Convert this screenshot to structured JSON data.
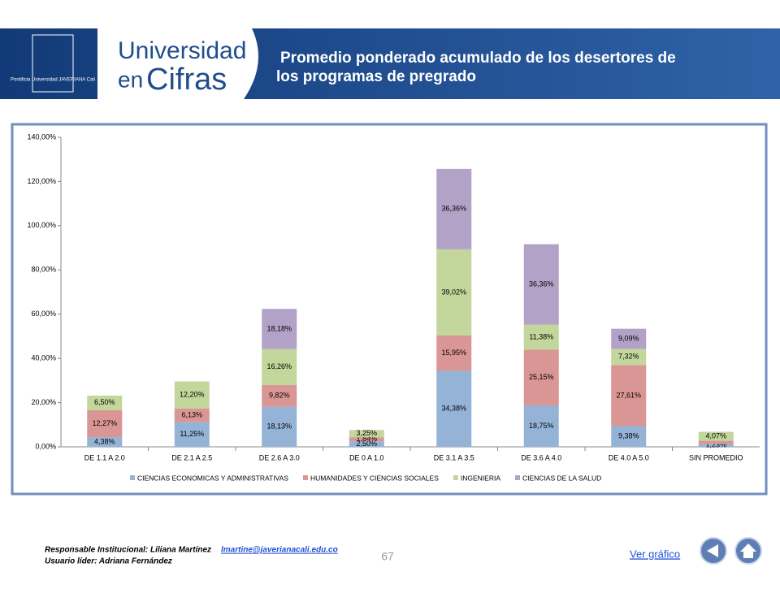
{
  "header": {
    "logo": "Pontificia Universidad JAVERIANA Cali",
    "brand_line1": "Universidad",
    "brand_line2a": "en",
    "brand_line2b": "Cifras",
    "title_line1": "Promedio ponderado acumulado de los desertores de",
    "title_line2": "los programas de pregrado"
  },
  "chart_data": {
    "type": "stacked_bar",
    "categories": [
      "DE 1.1 A 2.0",
      "DE 2.1 A 2.5",
      "DE 2.6 A 3.0",
      "DE 0 A 1.0",
      "DE 3.1 A 3.5",
      "DE 3.6 A 4.0",
      "DE 4.0 A 5.0",
      "SIN PROMEDIO"
    ],
    "series": [
      {
        "name": "CIENCIAS ECONOMICAS Y ADMINISTRATIVAS",
        "color": "#95b3d7",
        "values": [
          4.38,
          11.25,
          18.13,
          2.5,
          34.38,
          18.75,
          9.38,
          1.23
        ],
        "value_labels": [
          "4,38%",
          "11,25%",
          "18,13%",
          "2,50%",
          "34,38%",
          "18,75%",
          "9,38%",
          "1,23%"
        ]
      },
      {
        "name": "HUMANIDADES Y CIENCIAS SOCIALES",
        "color": "#d99694",
        "values": [
          12.27,
          6.13,
          9.82,
          1.84,
          15.95,
          25.15,
          27.61,
          1.5
        ],
        "value_labels": [
          "12,27%",
          "6,13%",
          "9,82%",
          "1,84%",
          "15,95%",
          "25,15%",
          "27,61%",
          null
        ]
      },
      {
        "name": "INGENIERIA",
        "color": "#c3d69b",
        "values": [
          6.5,
          12.2,
          16.26,
          3.25,
          39.02,
          11.38,
          7.32,
          4.07
        ],
        "value_labels": [
          "6,50%",
          "12,20%",
          "16,26%",
          "3,25%",
          "39,02%",
          "11,38%",
          "7,32%",
          "4,07%"
        ]
      },
      {
        "name": "CIENCIAS DE LA SALUD",
        "color": "#b3a2c7",
        "values": [
          null,
          null,
          18.18,
          null,
          36.36,
          36.36,
          9.09,
          null
        ],
        "value_labels": [
          null,
          null,
          "18,18%",
          null,
          "36,36%",
          "36,36%",
          "9,09%",
          null
        ]
      }
    ],
    "ylim": [
      0,
      140
    ],
    "yticks": [
      {
        "value": 0,
        "label": "0,00%"
      },
      {
        "value": 20,
        "label": "20,00%"
      },
      {
        "value": 40,
        "label": "40,00%"
      },
      {
        "value": 60,
        "label": "60,00%"
      },
      {
        "value": 80,
        "label": "80,00%"
      },
      {
        "value": 100,
        "label": "100,00%"
      },
      {
        "value": 120,
        "label": "120,00%"
      },
      {
        "value": 140,
        "label": "140,00%"
      }
    ],
    "grid": false,
    "legend": "bottom"
  },
  "footer": {
    "responsible": "Responsable Institucional: Liliana Martínez",
    "email": "lmartine@javerianacali.edu.co",
    "leader": "Usuario líder: Adriana Fernández",
    "page": "67",
    "link": "Ver gráfico"
  }
}
